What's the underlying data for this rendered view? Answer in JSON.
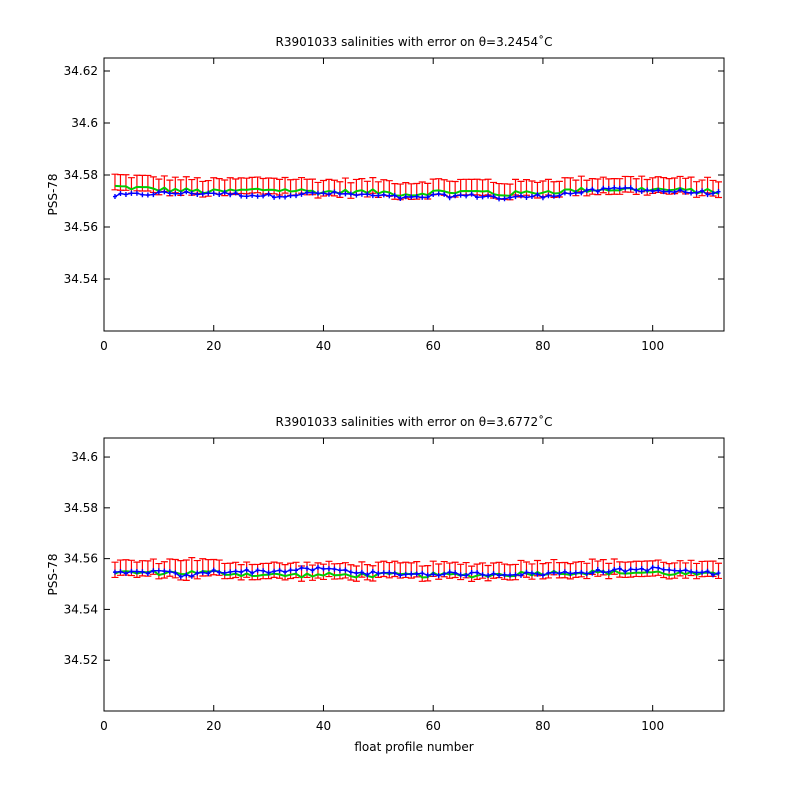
{
  "chart_data": [
    {
      "type": "scatter",
      "title": "R3901033 salinities with error on θ=3.2454˚C",
      "xlabel": "",
      "ylabel": "PSS-78",
      "xlim": [
        0,
        113
      ],
      "ylim": [
        34.52,
        34.625
      ],
      "xticks": [
        0,
        20,
        40,
        60,
        80,
        100
      ],
      "yticks": [
        34.54,
        34.56,
        34.58,
        34.6,
        34.62
      ],
      "ytick_labels": [
        "34.54",
        "34.56",
        "34.58",
        "34.6",
        "34.62"
      ],
      "xtick_labels": [
        "0",
        "20",
        "40",
        "60",
        "80",
        "100"
      ],
      "grid": false,
      "colors": {
        "error_bars": "#ff0000",
        "mapped": "#00cc00",
        "float": "#0000ff"
      },
      "x": [
        2,
        10,
        20,
        30,
        40,
        50,
        56,
        60,
        70,
        72,
        80,
        90,
        95,
        100,
        112
      ],
      "series": [
        {
          "values": [
            34.577,
            34.576,
            34.575,
            34.576,
            34.575,
            34.575,
            34.574,
            34.575,
            34.575,
            34.574,
            34.575,
            34.576,
            34.576,
            34.576,
            34.575
          ],
          "err": [
            0.003,
            0.003,
            0.003,
            0.003,
            0.003,
            0.003,
            0.003,
            0.003,
            0.003,
            0.003,
            0.003,
            0.003,
            0.003,
            0.003,
            0.003
          ]
        },
        {
          "values": [
            34.572,
            34.573,
            34.573,
            34.572,
            34.573,
            34.572,
            34.571,
            34.572,
            34.572,
            34.571,
            34.572,
            34.574,
            34.575,
            34.574,
            34.573
          ]
        }
      ]
    },
    {
      "type": "scatter",
      "title": "R3901033 salinities with error on θ=3.6772˚C",
      "xlabel": "float profile number",
      "ylabel": "PSS-78",
      "xlim": [
        0,
        113
      ],
      "ylim": [
        34.5,
        34.6075
      ],
      "xticks": [
        0,
        20,
        40,
        60,
        80,
        100
      ],
      "yticks": [
        34.52,
        34.54,
        34.56,
        34.58,
        34.6
      ],
      "ytick_labels": [
        "34.52",
        "34.54",
        "34.56",
        "34.58",
        "34.6"
      ],
      "xtick_labels": [
        "0",
        "20",
        "40",
        "60",
        "80",
        "100"
      ],
      "grid": false,
      "colors": {
        "error_bars": "#ff0000",
        "mapped": "#00cc00",
        "float": "#0000ff"
      },
      "x": [
        2,
        10,
        15,
        20,
        30,
        40,
        50,
        60,
        70,
        80,
        90,
        100,
        112
      ],
      "series": [
        {
          "values": [
            34.556,
            34.556,
            34.556,
            34.556,
            34.555,
            34.555,
            34.555,
            34.555,
            34.555,
            34.556,
            34.556,
            34.556,
            34.555
          ],
          "err": [
            0.003,
            0.003,
            0.004,
            0.003,
            0.003,
            0.003,
            0.003,
            0.003,
            0.003,
            0.003,
            0.003,
            0.003,
            0.003
          ]
        },
        {
          "values": [
            34.554,
            34.555,
            34.553,
            34.555,
            34.555,
            34.556,
            34.554,
            34.554,
            34.554,
            34.554,
            34.555,
            34.556,
            34.554
          ]
        }
      ]
    }
  ]
}
